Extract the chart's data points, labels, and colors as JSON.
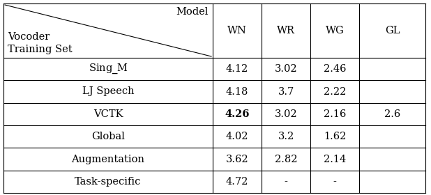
{
  "rows": [
    [
      "Sing_M",
      "4.12",
      "3.02",
      "2.46"
    ],
    [
      "LJ Speech",
      "4.18",
      "3.7",
      "2.22"
    ],
    [
      "VCTK",
      "4.26",
      "3.02",
      "2.16"
    ],
    [
      "Global",
      "4.02",
      "3.2",
      "1.62"
    ],
    [
      "Augmentation",
      "3.62",
      "2.82",
      "2.14"
    ],
    [
      "Task-specific",
      "4.72",
      "-",
      "-"
    ]
  ],
  "col_headers": [
    "WN",
    "WR",
    "WG",
    "GL"
  ],
  "gl_value": "2.6",
  "bold_cell_row": 2,
  "bold_cell_col": 1,
  "header_top_label": "Model",
  "header_bottom_label1": "Vocoder",
  "header_bottom_label2": "Training Set",
  "bg_color": "#ffffff",
  "text_color": "#000000",
  "font_size": 10.5
}
